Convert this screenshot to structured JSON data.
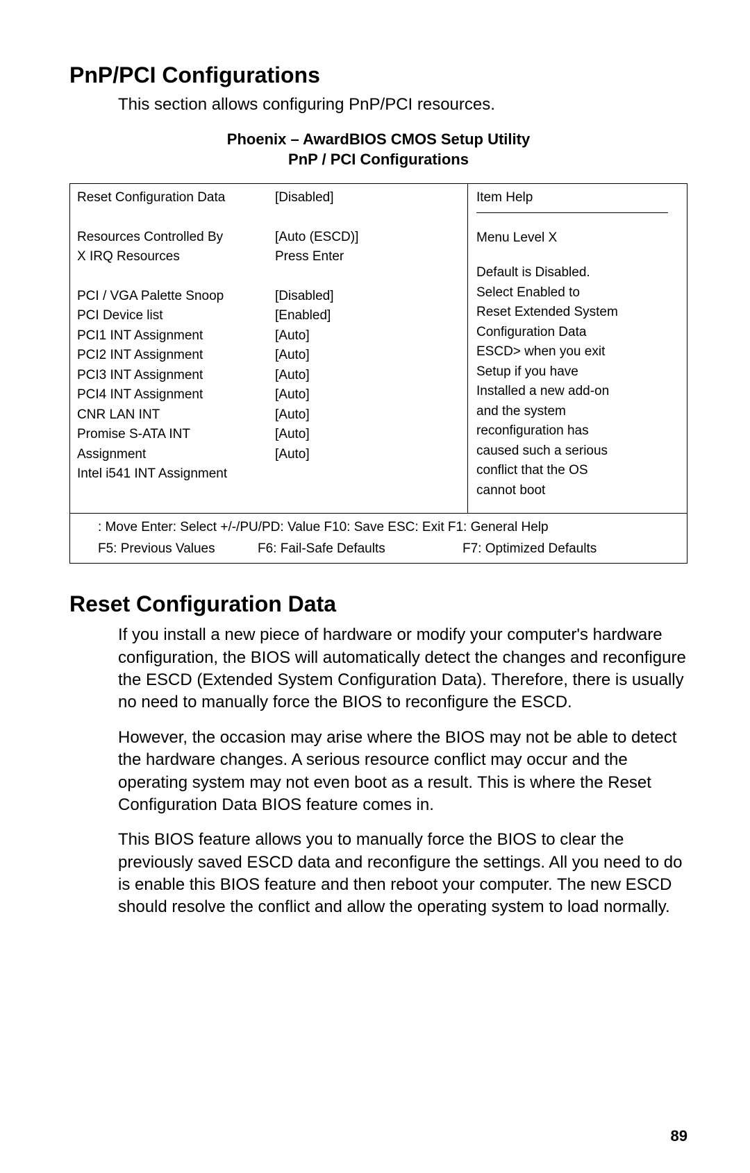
{
  "heading1": "PnP/PCI Configurations",
  "intro": "This section allows configuring PnP/PCI resources.",
  "biosHeader1": "Phoenix – AwardBIOS CMOS Setup Utility",
  "biosHeader2": "PnP / PCI Configurations",
  "bios": {
    "rows": {
      "r1": {
        "label": "Reset Configuration Data",
        "value": "[Disabled]"
      },
      "r2": {
        "label": "Resources Controlled By",
        "value": "[Auto (ESCD)]"
      },
      "r3": {
        "label": "X IRQ   Resources",
        "value": "Press Enter"
      },
      "r4": {
        "label": "PCI / VGA Palette Snoop",
        "value": "[Disabled]"
      },
      "r5": {
        "label": "PCI Device list",
        "value": "[Enabled]"
      },
      "r6": {
        "label": "PCI1 INT Assignment",
        "value": "[Auto]"
      },
      "r7": {
        "label": "PCI2 INT Assignment",
        "value": "[Auto]"
      },
      "r8": {
        "label": "PCI3 INT Assignment",
        "value": "[Auto]"
      },
      "r9": {
        "label": "PCI4 INT Assignment",
        "value": "[Auto]"
      },
      "r10": {
        "label": "CNR LAN INT",
        "value": "[Auto]"
      },
      "r11": {
        "label": "Promise S-ATA INT",
        "value": "[Auto]"
      },
      "r12": {
        "label": "Assignment",
        "value": "[Auto]"
      },
      "r13": {
        "label": "Intel i541 INT Assignment",
        "value": ""
      }
    },
    "help": {
      "title": "Item Help",
      "menuLevel": "Menu Level      X",
      "l1": "Default is Disabled.",
      "l2": "Select Enabled to",
      "l3": "Reset Extended System",
      "l4": "Configuration Data",
      "l5": "ESCD> when you exit",
      "l6": "Setup if you have",
      "l7": "Installed a new add-on",
      "l8": "and the system",
      "l9": "reconfiguration has",
      "l10": "caused such a serious",
      "l11": "conflict that the OS",
      "l12": "cannot boot"
    },
    "footer": {
      "row1": ": Move  Enter: Select  +/-/PU/PD: Value  F10: Save  ESC: Exit  F1: General Help",
      "f5": "F5: Previous Values",
      "f6": "F6: Fail-Safe Defaults",
      "f7": "F7: Optimized Defaults"
    }
  },
  "heading2": "Reset Configuration Data",
  "para1": "If you install a new piece of hardware or modify your computer's hardware configuration, the BIOS will automatically detect the changes and reconfigure the ESCD (Extended System Configuration Data). Therefore, there is usually no need to manually force the BIOS to reconfigure the ESCD.",
  "para2": "However, the occasion may arise where the BIOS may not be able to detect the hardware changes. A serious resource conflict may occur and the operating system may not even boot as a result. This is where the Reset Configuration Data BIOS feature comes in.",
  "para3": "This BIOS feature allows you to manually force the BIOS to clear the previously saved ESCD data and reconfigure the settings. All you need to do is enable this BIOS feature and then reboot your computer. The new ESCD should resolve the conflict and allow the operating system to load normally.",
  "pageNumber": "89"
}
